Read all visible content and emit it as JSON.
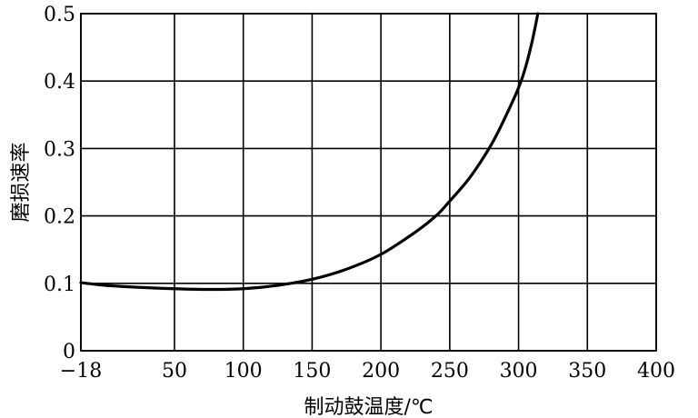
{
  "chart_data": {
    "type": "line",
    "title": "",
    "xlabel": "制动鼓温度/℃",
    "ylabel": "磨损速率",
    "xlim": [
      -18,
      400
    ],
    "ylim": [
      0,
      0.5
    ],
    "x_ticks": [
      {
        "value": -18,
        "label": "−18"
      },
      {
        "value": 50,
        "label": "50"
      },
      {
        "value": 100,
        "label": "100"
      },
      {
        "value": 150,
        "label": "150"
      },
      {
        "value": 200,
        "label": "200"
      },
      {
        "value": 250,
        "label": "250"
      },
      {
        "value": 300,
        "label": "300"
      },
      {
        "value": 350,
        "label": "350"
      },
      {
        "value": 400,
        "label": "400"
      }
    ],
    "y_ticks": [
      {
        "value": 0,
        "label": "0"
      },
      {
        "value": 0.1,
        "label": "0.1"
      },
      {
        "value": 0.2,
        "label": "0.2"
      },
      {
        "value": 0.3,
        "label": "0.3"
      },
      {
        "value": 0.4,
        "label": "0.4"
      },
      {
        "value": 0.5,
        "label": "0.5"
      }
    ],
    "grid": true,
    "series": [
      {
        "x": [
          -18,
          0,
          25,
          50,
          75,
          100,
          125,
          150,
          175,
          200,
          225,
          240,
          250,
          265,
          280,
          290,
          300,
          305,
          310,
          314
        ],
        "y": [
          0.101,
          0.097,
          0.094,
          0.092,
          0.091,
          0.092,
          0.097,
          0.106,
          0.121,
          0.143,
          0.176,
          0.2,
          0.222,
          0.258,
          0.305,
          0.345,
          0.39,
          0.42,
          0.46,
          0.5
        ]
      }
    ]
  }
}
